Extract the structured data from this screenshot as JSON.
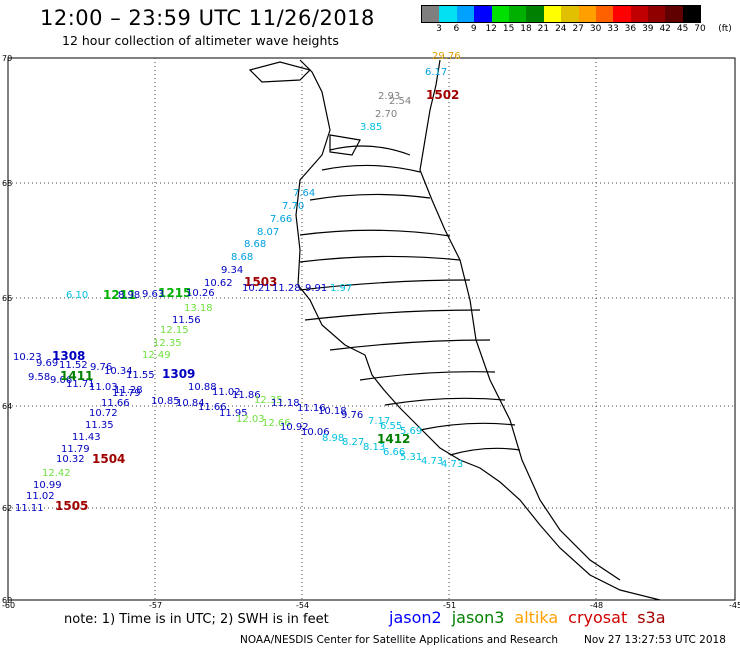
{
  "header": {
    "title": "12:00 – 23:59 UTC 11/26/2018",
    "subtitle": "12 hour collection of altimeter wave heights"
  },
  "color_scale": {
    "labels": [
      "3",
      "6",
      "9",
      "12",
      "15",
      "18",
      "21",
      "24",
      "27",
      "30",
      "33",
      "36",
      "39",
      "42",
      "45",
      "70"
    ],
    "unit": "(ft)",
    "colors": [
      "#7f7f7f",
      "#00e0f0",
      "#00a0ff",
      "#0000ff",
      "#00e000",
      "#00b000",
      "#008000",
      "#ffff00",
      "#e0c000",
      "#ffa000",
      "#ff6000",
      "#ff0000",
      "#c00000",
      "#900000",
      "#600000",
      "#000000"
    ]
  },
  "axes": {
    "lat_labels": [
      "70",
      "68",
      "66",
      "64",
      "62",
      "60"
    ],
    "lon_labels": [
      "-60",
      "-57",
      "-54",
      "-51",
      "-48",
      "-45"
    ]
  },
  "readings": [
    {
      "text": "29.76",
      "color": "#e0a000"
    },
    {
      "text": "6.17",
      "color": "#00a0e0"
    },
    {
      "text": "1502",
      "color": "#a00000",
      "id": true
    },
    {
      "text": "2.93",
      "color": "#808080"
    },
    {
      "text": "2.54",
      "color": "#808080"
    },
    {
      "text": "2.70",
      "color": "#808080"
    },
    {
      "text": "3.85",
      "color": "#00c0e0"
    },
    {
      "text": "7.64",
      "color": "#00a0e0"
    },
    {
      "text": "7.70",
      "color": "#00a0e0"
    },
    {
      "text": "7.66",
      "color": "#00a0e0"
    },
    {
      "text": "8.07",
      "color": "#00a0e0"
    },
    {
      "text": "8.68",
      "color": "#00a0e0"
    },
    {
      "text": "8.68",
      "color": "#00a0e0"
    },
    {
      "text": "9.34",
      "color": "#0000c0"
    },
    {
      "text": "10.62",
      "color": "#0000c0"
    },
    {
      "text": "1503",
      "color": "#a00000",
      "id": true
    },
    {
      "text": "10.21",
      "color": "#0000c0"
    },
    {
      "text": "11.28",
      "color": "#0000c0"
    },
    {
      "text": "9.91",
      "color": "#0000c0"
    },
    {
      "text": "1.97",
      "color": "#00c0e0"
    },
    {
      "text": "6.10",
      "color": "#00c0e0"
    },
    {
      "text": "1211",
      "color": "#00b000",
      "id": true
    },
    {
      "text": "1215",
      "color": "#00b000",
      "id": true
    },
    {
      "text": "8.98",
      "color": "#0000c0"
    },
    {
      "text": "9.63",
      "color": "#0000c0"
    },
    {
      "text": "10.26",
      "color": "#0000c0"
    },
    {
      "text": "13.18",
      "color": "#70e040"
    },
    {
      "text": "11.56",
      "color": "#0000c0"
    },
    {
      "text": "12.15",
      "color": "#70e040"
    },
    {
      "text": "12.35",
      "color": "#70e040"
    },
    {
      "text": "12.49",
      "color": "#70e040"
    },
    {
      "text": "10.23",
      "color": "#0000c0"
    },
    {
      "text": "1308",
      "color": "#0000c0",
      "id": true
    },
    {
      "text": "9.69",
      "color": "#0000c0"
    },
    {
      "text": "11.52",
      "color": "#0000c0"
    },
    {
      "text": "9.76",
      "color": "#0000c0"
    },
    {
      "text": "10.34",
      "color": "#0000c0"
    },
    {
      "text": "11.55",
      "color": "#0000c0"
    },
    {
      "text": "1309",
      "color": "#0000c0",
      "id": true
    },
    {
      "text": "9.58",
      "color": "#0000c0"
    },
    {
      "text": "9.06",
      "color": "#0000c0"
    },
    {
      "text": "1411",
      "color": "#008000",
      "id": true
    },
    {
      "text": "11.71",
      "color": "#0000c0"
    },
    {
      "text": "11.03",
      "color": "#0000c0"
    },
    {
      "text": "11.79",
      "color": "#0000c0"
    },
    {
      "text": "11.28",
      "color": "#0000c0"
    },
    {
      "text": "10.88",
      "color": "#0000c0"
    },
    {
      "text": "11.02",
      "color": "#0000c0"
    },
    {
      "text": "11.86",
      "color": "#0000c0"
    },
    {
      "text": "11.66",
      "color": "#0000c0"
    },
    {
      "text": "10.85",
      "color": "#0000c0"
    },
    {
      "text": "10.84",
      "color": "#0000c0"
    },
    {
      "text": "11.66",
      "color": "#0000c0"
    },
    {
      "text": "11.95",
      "color": "#0000c0"
    },
    {
      "text": "12.35",
      "color": "#70e040"
    },
    {
      "text": "11.18",
      "color": "#0000c0"
    },
    {
      "text": "11.16",
      "color": "#0000c0"
    },
    {
      "text": "10.18",
      "color": "#0000c0"
    },
    {
      "text": "9.76",
      "color": "#0000c0"
    },
    {
      "text": "7.17",
      "color": "#00c0e0"
    },
    {
      "text": "6.55",
      "color": "#00c0e0"
    },
    {
      "text": "5.69",
      "color": "#00c0e0"
    },
    {
      "text": "10.72",
      "color": "#0000c0"
    },
    {
      "text": "12.03",
      "color": "#70e040"
    },
    {
      "text": "12.66",
      "color": "#70e040"
    },
    {
      "text": "10.92",
      "color": "#0000c0"
    },
    {
      "text": "10.06",
      "color": "#0000c0"
    },
    {
      "text": "11.35",
      "color": "#0000c0"
    },
    {
      "text": "8.98",
      "color": "#00c0e0"
    },
    {
      "text": "8.27",
      "color": "#00c0e0"
    },
    {
      "text": "1412",
      "color": "#008000",
      "id": true
    },
    {
      "text": "11.43",
      "color": "#0000c0"
    },
    {
      "text": "8.13",
      "color": "#00c0e0"
    },
    {
      "text": "6.66",
      "color": "#00c0e0"
    },
    {
      "text": "5.31",
      "color": "#00c0e0"
    },
    {
      "text": "4.73",
      "color": "#00c0e0"
    },
    {
      "text": "4.73",
      "color": "#00c0e0"
    },
    {
      "text": "11.79",
      "color": "#0000c0"
    },
    {
      "text": "10.32",
      "color": "#0000c0"
    },
    {
      "text": "1504",
      "color": "#a00000",
      "id": true
    },
    {
      "text": "12.42",
      "color": "#70e040"
    },
    {
      "text": "10.99",
      "color": "#0000c0"
    },
    {
      "text": "11.02",
      "color": "#0000c0"
    },
    {
      "text": "11.11",
      "color": "#0000c0"
    },
    {
      "text": "1505",
      "color": "#a00000",
      "id": true
    }
  ],
  "footer": {
    "note": "note: 1) Time is in UTC; 2) SWH is in feet",
    "satellites": [
      {
        "name": "jason2",
        "color": "#0000ff"
      },
      {
        "name": "jason3",
        "color": "#008000"
      },
      {
        "name": "altika",
        "color": "#ffa000"
      },
      {
        "name": "cryosat",
        "color": "#d00000"
      },
      {
        "name": "s3a",
        "color": "#a00000"
      }
    ],
    "credit": "NOAA/NESDIS Center for Satellite Applications and Research",
    "timestamp": "Nov 27 13:27:53 UTC 2018"
  }
}
